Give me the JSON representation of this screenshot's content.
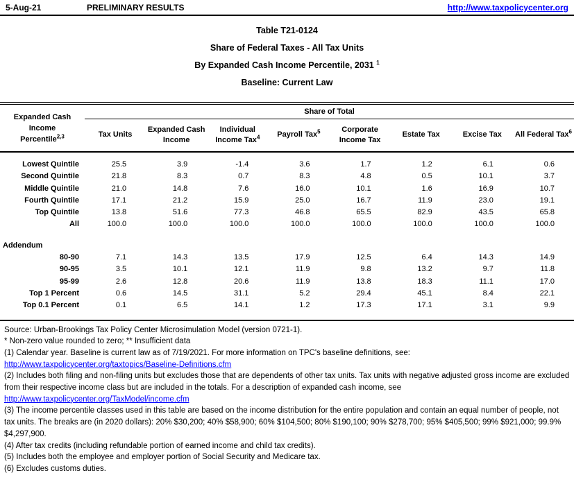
{
  "header": {
    "date": "5-Aug-21",
    "status": "PRELIMINARY RESULTS",
    "link": "http://www.taxpolicycenter.org"
  },
  "title": {
    "line1": "Table T21-0124",
    "line2": "Share of Federal Taxes - All Tax Units",
    "line3": "By Expanded Cash Income Percentile, 2031",
    "line3_sup": "1",
    "line4": "Baseline: Current Law"
  },
  "table": {
    "corner_header": "Expanded Cash Income Percentile",
    "corner_sup": "2,3",
    "span_header": "Share of Total",
    "columns": [
      {
        "label": "Tax Units",
        "sup": ""
      },
      {
        "label": "Expanded Cash Income",
        "sup": ""
      },
      {
        "label": "Individual Income Tax",
        "sup": "4"
      },
      {
        "label": "Payroll Tax",
        "sup": "5"
      },
      {
        "label": "Corporate Income Tax",
        "sup": ""
      },
      {
        "label": "Estate Tax",
        "sup": ""
      },
      {
        "label": "Excise Tax",
        "sup": ""
      },
      {
        "label": "All Federal Tax",
        "sup": "6"
      }
    ],
    "main_rows": [
      {
        "label": "Lowest Quintile",
        "values": [
          "25.5",
          "3.9",
          "-1.4",
          "3.6",
          "1.7",
          "1.2",
          "6.1",
          "0.6"
        ]
      },
      {
        "label": "Second Quintile",
        "values": [
          "21.8",
          "8.3",
          "0.7",
          "8.3",
          "4.8",
          "0.5",
          "10.1",
          "3.7"
        ]
      },
      {
        "label": "Middle Quintile",
        "values": [
          "21.0",
          "14.8",
          "7.6",
          "16.0",
          "10.1",
          "1.6",
          "16.9",
          "10.7"
        ]
      },
      {
        "label": "Fourth Quintile",
        "values": [
          "17.1",
          "21.2",
          "15.9",
          "25.0",
          "16.7",
          "11.9",
          "23.0",
          "19.1"
        ]
      },
      {
        "label": "Top Quintile",
        "values": [
          "13.8",
          "51.6",
          "77.3",
          "46.8",
          "65.5",
          "82.9",
          "43.5",
          "65.8"
        ]
      },
      {
        "label": "All",
        "values": [
          "100.0",
          "100.0",
          "100.0",
          "100.0",
          "100.0",
          "100.0",
          "100.0",
          "100.0"
        ]
      }
    ],
    "addendum_label": "Addendum",
    "addendum_rows": [
      {
        "label": "80-90",
        "values": [
          "7.1",
          "14.3",
          "13.5",
          "17.9",
          "12.5",
          "6.4",
          "14.3",
          "14.9"
        ]
      },
      {
        "label": "90-95",
        "values": [
          "3.5",
          "10.1",
          "12.1",
          "11.9",
          "9.8",
          "13.2",
          "9.7",
          "11.8"
        ]
      },
      {
        "label": "95-99",
        "values": [
          "2.6",
          "12.8",
          "20.6",
          "11.9",
          "13.8",
          "18.3",
          "11.1",
          "17.0"
        ]
      },
      {
        "label": "Top 1 Percent",
        "values": [
          "0.6",
          "14.5",
          "31.1",
          "5.2",
          "29.4",
          "45.1",
          "8.4",
          "22.1"
        ]
      },
      {
        "label": "Top 0.1 Percent",
        "values": [
          "0.1",
          "6.5",
          "14.1",
          "1.2",
          "17.3",
          "17.1",
          "3.1",
          "9.9"
        ]
      }
    ]
  },
  "footnotes": {
    "source": "Source: Urban-Brookings Tax Policy Center Microsimulation Model (version 0721-1).",
    "symbols": "* Non-zero value rounded to zero; ** Insufficient data",
    "note1": "(1) Calendar year. Baseline is current law as of 7/19/2021. For more information on TPC's baseline definitions, see:",
    "link1": "http://www.taxpolicycenter.org/taxtopics/Baseline-Definitions.cfm",
    "note2": "(2) Includes both filing and non-filing units but excludes those that are dependents of other tax units. Tax units with negative adjusted gross income are excluded from their respective income class but are included in the totals. For a description of expanded cash income, see",
    "link2": "http://www.taxpolicycenter.org/TaxModel/income.cfm",
    "note3": "(3) The income percentile classes used in this table are based on the income distribution for the entire population and contain an equal number of people, not tax units. The breaks are (in 2020 dollars): 20% $30,200; 40% $58,900; 60% $104,500; 80% $190,100; 90% $278,700; 95% $405,500; 99% $921,000; 99.9% $4,297,900.",
    "note4": "(4) After tax credits (including refundable portion of earned income and child tax credits).",
    "note5": "(5) Includes both the employee and employer portion of Social Security and Medicare tax.",
    "note6": "(6) Excludes customs duties."
  },
  "colors": {
    "text": "#000000",
    "link": "#0000FF",
    "rule": "#000000",
    "background": "#FFFFFF"
  }
}
